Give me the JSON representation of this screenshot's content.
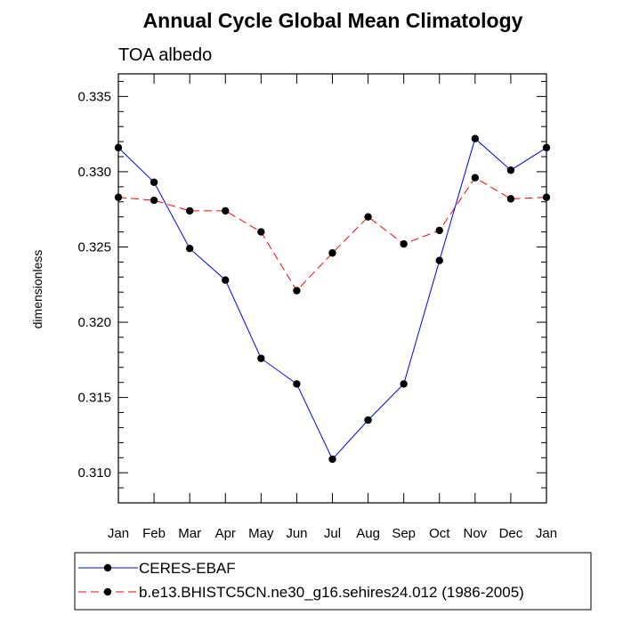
{
  "chart_data": {
    "type": "line",
    "title": "Annual Cycle Global Mean Climatology",
    "subtitle": "TOA albedo",
    "xlabel": "",
    "ylabel": "dimensionless",
    "categories": [
      "Jan",
      "Feb",
      "Mar",
      "Apr",
      "May",
      "Jun",
      "Jul",
      "Aug",
      "Sep",
      "Oct",
      "Nov",
      "Dec",
      "Jan"
    ],
    "ylim": [
      0.308,
      0.3365
    ],
    "yticks": [
      "0.310",
      "0.315",
      "0.320",
      "0.325",
      "0.330",
      "0.335"
    ],
    "grid": false,
    "legend_position": "bottom",
    "series": [
      {
        "name": "CERES-EBAF",
        "color": "#0000ff",
        "dash": "solid",
        "values": [
          0.3316,
          0.3293,
          0.3249,
          0.3228,
          0.3176,
          0.3159,
          0.3109,
          0.3135,
          0.3159,
          0.3241,
          0.3322,
          0.3301,
          0.3316
        ]
      },
      {
        "name": "b.e13.BHISTC5CN.ne30_g16.sehires24.012 (1986-2005)",
        "color": "#ff0000",
        "dash": "dashed",
        "values": [
          0.3283,
          0.3281,
          0.3274,
          0.3274,
          0.326,
          0.3221,
          0.3246,
          0.327,
          0.3252,
          0.3261,
          0.3296,
          0.3282,
          0.3283
        ]
      }
    ]
  }
}
